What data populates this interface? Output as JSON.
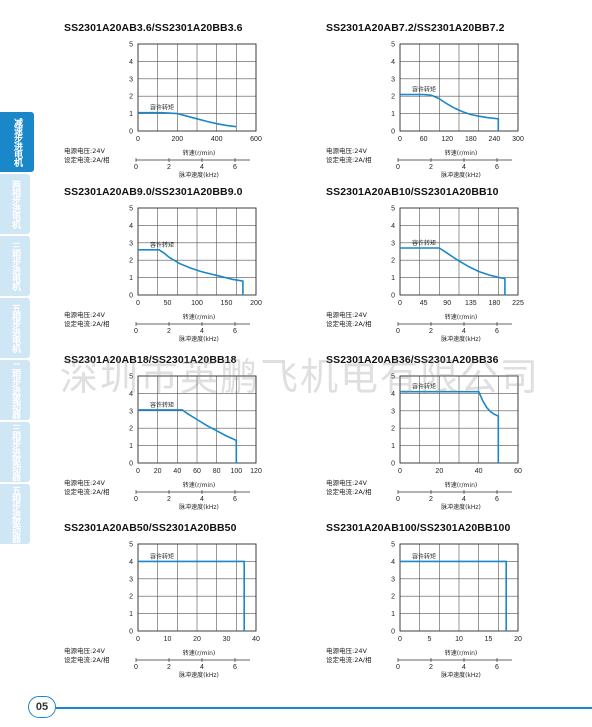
{
  "side_tabs": [
    {
      "label": "减速步进电机",
      "active": true
    },
    {
      "label": "两相步进电机",
      "active": false
    },
    {
      "label": "三相步进电机",
      "active": false
    },
    {
      "label": "五相步进电机",
      "active": false
    },
    {
      "label": "二相步进驱动器",
      "active": false
    },
    {
      "label": "三相步进驱动器",
      "active": false
    },
    {
      "label": "五相步进驱动器",
      "active": false
    }
  ],
  "watermark": "深圳市英鹏飞机电有限公司",
  "page_number": "05",
  "colors": {
    "accent": "#1a87c9",
    "curve": "#1a87c9",
    "tab_inactive": "#cfe6f5"
  },
  "chart_data": [
    {
      "type": "line",
      "title": "SS2301A20AB3.6/SS2301A20BB3.6",
      "y_ticks": [
        "0",
        "1",
        "2",
        "3",
        "4",
        "5"
      ],
      "ylim": [
        0,
        5
      ],
      "x_ticks": [
        "0",
        "200",
        "400",
        "600"
      ],
      "xlim": [
        0,
        600
      ],
      "annotation": "容许转矩",
      "x": [
        0,
        60,
        120,
        200,
        250,
        300,
        350,
        400,
        450,
        500
      ],
      "y": [
        1.05,
        1.05,
        1.05,
        1.0,
        0.85,
        0.7,
        0.55,
        0.42,
        0.32,
        0.25
      ],
      "power_label": "电源电压:24V",
      "current_label": "设定电流:2A/相",
      "speed_label": "转速(r/min)",
      "pulse_label": "脉冲速度(kHz)",
      "pulse_ticks": [
        "0",
        "2",
        "4",
        "6"
      ]
    },
    {
      "type": "line",
      "title": "SS2301A20AB7.2/SS2301A20BB7.2",
      "y_ticks": [
        "0",
        "1",
        "2",
        "3",
        "4",
        "5"
      ],
      "ylim": [
        0,
        5
      ],
      "x_ticks": [
        "0",
        "60",
        "120",
        "180",
        "240",
        "300"
      ],
      "xlim": [
        0,
        300
      ],
      "annotation": "容许转矩",
      "x": [
        0,
        30,
        60,
        80,
        100,
        120,
        140,
        160,
        180,
        200,
        220,
        250
      ],
      "y": [
        2.1,
        2.1,
        2.1,
        2.05,
        1.85,
        1.55,
        1.3,
        1.1,
        0.95,
        0.85,
        0.78,
        0.7
      ],
      "drop_x": 250,
      "drop_to": 0,
      "power_label": "电源电压:24V",
      "current_label": "设定电流:2A/相",
      "speed_label": "转速(r/min)",
      "pulse_label": "脉冲速度(kHz)",
      "pulse_ticks": [
        "0",
        "2",
        "4",
        "6"
      ]
    },
    {
      "type": "line",
      "title": "SS2301A20AB9.0/SS2301A20BB9.0",
      "y_ticks": [
        "0",
        "1",
        "2",
        "3",
        "4",
        "5"
      ],
      "ylim": [
        0,
        5
      ],
      "x_ticks": [
        "0",
        "50",
        "100",
        "150",
        "200"
      ],
      "xlim": [
        0,
        225
      ],
      "annotation": "容许转矩",
      "x": [
        0,
        20,
        40,
        50,
        60,
        80,
        100,
        120,
        140,
        160,
        180,
        200
      ],
      "y": [
        2.6,
        2.6,
        2.6,
        2.4,
        2.15,
        1.8,
        1.55,
        1.35,
        1.2,
        1.05,
        0.9,
        0.8
      ],
      "drop_x": 200,
      "drop_to": 0,
      "power_label": "电源电压:24V",
      "current_label": "设定电流:2A/相",
      "speed_label": "转速(r/min)",
      "pulse_label": "脉冲速度(kHz)",
      "pulse_ticks": [
        "0",
        "2",
        "4",
        "6"
      ]
    },
    {
      "type": "line",
      "title": "SS2301A20AB10/SS2301A20BB10",
      "y_ticks": [
        "0",
        "1",
        "2",
        "3",
        "4",
        "5"
      ],
      "ylim": [
        0,
        5
      ],
      "x_ticks": [
        "0",
        "45",
        "90",
        "135",
        "180",
        "225"
      ],
      "xlim": [
        0,
        225
      ],
      "annotation": "容许转矩",
      "x": [
        0,
        30,
        60,
        75,
        90,
        110,
        130,
        150,
        170,
        190,
        200
      ],
      "y": [
        2.7,
        2.7,
        2.7,
        2.7,
        2.4,
        2.0,
        1.65,
        1.35,
        1.15,
        1.0,
        0.95
      ],
      "drop_x": 200,
      "drop_to": 0,
      "power_label": "电源电压:24V",
      "current_label": "设定电流:2A/相",
      "speed_label": "转速(r/min)",
      "pulse_label": "脉冲速度(kHz)",
      "pulse_ticks": [
        "0",
        "2",
        "4",
        "6"
      ]
    },
    {
      "type": "line",
      "title": "SS2301A20AB18/SS2301A20BB18",
      "y_ticks": [
        "0",
        "1",
        "2",
        "3",
        "4",
        "5"
      ],
      "ylim": [
        0,
        5
      ],
      "x_ticks": [
        "0",
        "20",
        "40",
        "60",
        "80",
        "100",
        "120"
      ],
      "xlim": [
        0,
        120
      ],
      "annotation": "容许转矩",
      "x": [
        0,
        20,
        40,
        45,
        50,
        60,
        70,
        80,
        90,
        100
      ],
      "y": [
        3.05,
        3.05,
        3.05,
        3.05,
        2.85,
        2.5,
        2.15,
        1.85,
        1.55,
        1.3
      ],
      "drop_x": 100,
      "drop_to": 0,
      "power_label": "电源电压:24V",
      "current_label": "设定电流:2A/相",
      "speed_label": "转速(r/min)",
      "pulse_label": "脉冲速度(kHz)",
      "pulse_ticks": [
        "0",
        "2",
        "4",
        "6"
      ]
    },
    {
      "type": "line",
      "title": "SS2301A20AB36/SS2301A20BB36",
      "y_ticks": [
        "0",
        "1",
        "2",
        "3",
        "4",
        "5"
      ],
      "ylim": [
        0,
        5
      ],
      "x_ticks": [
        "0",
        "20",
        "40",
        "60"
      ],
      "xlim": [
        0,
        60
      ],
      "annotation": "容许转矩",
      "x": [
        0,
        10,
        20,
        30,
        40,
        42,
        44,
        46,
        48,
        50
      ],
      "y": [
        4.1,
        4.1,
        4.1,
        4.1,
        4.1,
        3.6,
        3.2,
        2.95,
        2.8,
        2.7
      ],
      "drop_x": 50,
      "drop_to": 0,
      "power_label": "电源电压:24V",
      "current_label": "设定电流:2A/相",
      "speed_label": "转速(r/min)",
      "pulse_label": "脉冲速度(kHz)",
      "pulse_ticks": [
        "0",
        "2",
        "4",
        "6"
      ]
    },
    {
      "type": "line",
      "title": "SS2301A20AB50/SS2301A20BB50",
      "y_ticks": [
        "0",
        "1",
        "2",
        "3",
        "4",
        "5"
      ],
      "ylim": [
        0,
        5
      ],
      "x_ticks": [
        "0",
        "10",
        "20",
        "30",
        "40"
      ],
      "xlim": [
        0,
        40
      ],
      "annotation": "容许转矩",
      "x": [
        0,
        10,
        20,
        30,
        36
      ],
      "y": [
        4.0,
        4.0,
        4.0,
        4.0,
        4.0
      ],
      "drop_x": 36,
      "drop_to": 0,
      "power_label": "电源电压:24V",
      "current_label": "设定电流:2A/相",
      "speed_label": "转速(r/min)",
      "pulse_label": "脉冲速度(kHz)",
      "pulse_ticks": [
        "0",
        "2",
        "4",
        "6"
      ]
    },
    {
      "type": "line",
      "title": "SS2301A20AB100/SS2301A20BB100",
      "y_ticks": [
        "0",
        "1",
        "2",
        "3",
        "4",
        "5"
      ],
      "ylim": [
        0,
        5
      ],
      "x_ticks": [
        "0",
        "5",
        "10",
        "15",
        "20"
      ],
      "xlim": [
        0,
        20
      ],
      "annotation": "容许转矩",
      "x": [
        0,
        5,
        10,
        15,
        18
      ],
      "y": [
        4.0,
        4.0,
        4.0,
        4.0,
        4.0
      ],
      "drop_x": 18,
      "drop_to": 0,
      "power_label": "电源电压:24V",
      "current_label": "设定电流:2A/相",
      "speed_label": "转速(r/min)",
      "pulse_label": "脉冲速度(kHz)",
      "pulse_ticks": [
        "0",
        "2",
        "4",
        "6"
      ]
    }
  ]
}
